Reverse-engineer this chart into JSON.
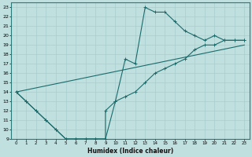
{
  "xlabel": "Humidex (Indice chaleur)",
  "bg_color": "#c0e0e0",
  "line_color": "#1a6b6b",
  "grid_color": "#a8cccc",
  "xlim": [
    -0.5,
    23.5
  ],
  "ylim": [
    9,
    23.5
  ],
  "xticks": [
    0,
    1,
    2,
    3,
    4,
    5,
    6,
    7,
    8,
    9,
    10,
    11,
    12,
    13,
    14,
    15,
    16,
    17,
    18,
    19,
    20,
    21,
    22,
    23
  ],
  "yticks": [
    9,
    10,
    11,
    12,
    13,
    14,
    15,
    16,
    17,
    18,
    19,
    20,
    21,
    22,
    23
  ],
  "line1_x": [
    0,
    1,
    2,
    3,
    4,
    5,
    6,
    7,
    8,
    9,
    9,
    10,
    11,
    12,
    13,
    14,
    15,
    16,
    17,
    18,
    19,
    20,
    21,
    22,
    23
  ],
  "line1_y": [
    14,
    13,
    12,
    11,
    10,
    9,
    9,
    9,
    9,
    9,
    12,
    13,
    17.5,
    17,
    23,
    22.5,
    22.5,
    21.5,
    20.5,
    20,
    19.5,
    20,
    19.5,
    19.5,
    19.5
  ],
  "line2_x": [
    0,
    1,
    2,
    3,
    4,
    5,
    6,
    7,
    8,
    9,
    10,
    11,
    12,
    13,
    14,
    15,
    16,
    17,
    18,
    19,
    20,
    21,
    22,
    23
  ],
  "line2_y": [
    14,
    13,
    12,
    11,
    10,
    9,
    9,
    9,
    9,
    9,
    13,
    13.5,
    14,
    15,
    16,
    16.5,
    17,
    17.5,
    18.5,
    19,
    19,
    19.5,
    19.5,
    19.5
  ],
  "line3_x": [
    0,
    23
  ],
  "line3_y": [
    14,
    19
  ]
}
